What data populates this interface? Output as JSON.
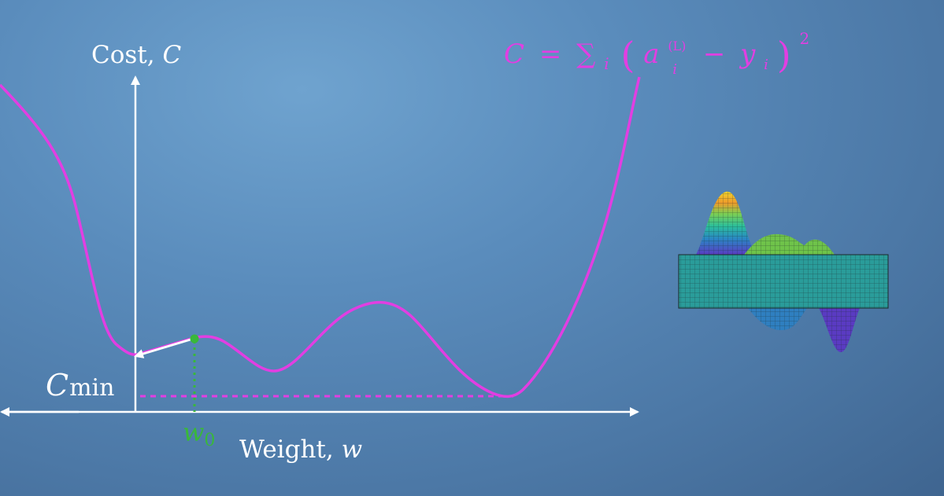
{
  "formula": {
    "lhs": "C",
    "equals": "=",
    "sum": "∑",
    "sum_sub": "i",
    "open_paren": "(",
    "a": "a",
    "a_sup": "(L)",
    "a_sub": "i",
    "minus": "−",
    "y": "y",
    "y_sub": "i",
    "close_paren": ")",
    "power": "2"
  },
  "axes": {
    "y_label_text": "Cost, ",
    "y_label_var": "C",
    "x_label_text": "Weight, ",
    "x_label_var": "w"
  },
  "markers": {
    "cmin_main": "C",
    "cmin_sub": "min",
    "w0_main": "w",
    "w0_sub": "0"
  },
  "colors": {
    "curve": "#e23ee2",
    "axis": "#ffffff",
    "point": "#39b83a",
    "background": "#5a8cbc"
  },
  "surface_icon": "3d-surface-plot"
}
